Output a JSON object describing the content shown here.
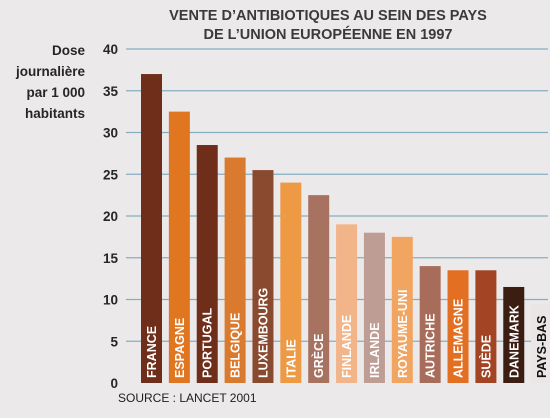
{
  "chart_data": {
    "type": "bar",
    "title_lines": [
      "VENTE D’ANTIBIOTIQUES AU SEIN DES PAYS",
      "DE L’UNION EUROPÉENNE EN 1997"
    ],
    "ylabel_lines": [
      "Dose",
      "journalière",
      "par 1 000",
      "habitants"
    ],
    "xlabel": "",
    "ylim": [
      0,
      40
    ],
    "yticks": [
      0,
      5,
      10,
      15,
      20,
      25,
      30,
      35,
      40
    ],
    "grid": true,
    "categories": [
      "FRANCE",
      "ESPAGNE",
      "PORTUGAL",
      "BELGIQUE",
      "LUXEMBOURG",
      "ITALIE",
      "GRÈCE",
      "FINLANDE",
      "IRLANDE",
      "ROYAUME-UNI",
      "AUTRICHE",
      "ALLEMAGNE",
      "SUÈDE",
      "DANEMARK",
      "PAYS-BAS"
    ],
    "values": [
      37.0,
      32.5,
      28.5,
      27.0,
      25.5,
      24.0,
      22.5,
      19.0,
      18.0,
      17.5,
      14.0,
      13.5,
      13.5,
      11.5,
      9.5
    ],
    "bar_colors": [
      "#6e2e1a",
      "#e0761f",
      "#6e2e1a",
      "#d97a2e",
      "#8a4a30",
      "#ee9a45",
      "#a77360",
      "#f2b489",
      "#bd9d94",
      "#f1a560",
      "#a86c5b",
      "#e36f22",
      "#a34524",
      "#3c1d12",
      "#e9e6e5"
    ],
    "source": "SOURCE : LANCET 2001"
  },
  "colors": {
    "background": "#ebe9ea",
    "grid": "#86aec2",
    "text": "#262626"
  }
}
